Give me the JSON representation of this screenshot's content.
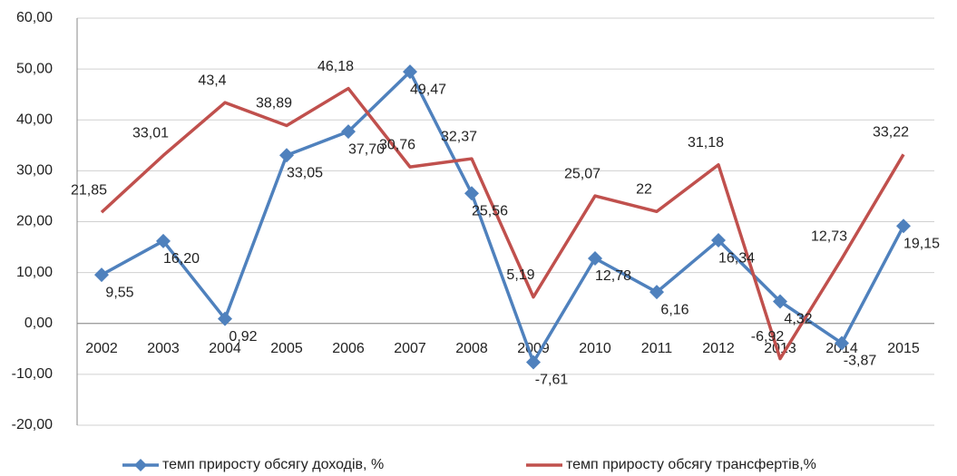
{
  "chart_data": {
    "type": "line",
    "categories": [
      "2002",
      "2003",
      "2004",
      "2005",
      "2006",
      "2007",
      "2008",
      "2009",
      "2010",
      "2011",
      "2012",
      "2013",
      "2014",
      "2015"
    ],
    "series": [
      {
        "name": "темп приросту обсягу доходів, %",
        "color": "#4f81bd",
        "marker": "diamond",
        "values": [
          9.55,
          16.2,
          0.92,
          33.05,
          37.7,
          49.47,
          25.56,
          -7.61,
          12.78,
          6.16,
          16.34,
          4.32,
          -3.87,
          19.15
        ],
        "value_labels": [
          "9,55",
          "16,20",
          "0,92",
          "33,05",
          "37,70",
          "49,47",
          "25,56",
          "-7,61",
          "12,78",
          "6,16",
          "16,34",
          "4,32",
          "-3,87",
          "19,15"
        ]
      },
      {
        "name": "темп приросту обсягу трансфертів,%",
        "color": "#c0504d",
        "values": [
          21.85,
          33.01,
          43.4,
          38.89,
          46.18,
          30.76,
          32.37,
          5.19,
          25.07,
          22,
          31.18,
          -6.92,
          12.73,
          33.22
        ],
        "value_labels": [
          "21,85",
          "33,01",
          "43,4",
          "38,89",
          "46,18",
          "30,76",
          "32,37",
          "5,19",
          "25,07",
          "22",
          "31,18",
          "-6,92",
          "12,73",
          "33,22"
        ]
      }
    ],
    "ylim": [
      -20,
      60
    ],
    "yticks": [
      {
        "value": -20,
        "label": "-20,00"
      },
      {
        "value": -10,
        "label": "-10,00"
      },
      {
        "value": 0,
        "label": "0,00"
      },
      {
        "value": 10,
        "label": "10,00"
      },
      {
        "value": 20,
        "label": "20,00"
      },
      {
        "value": 30,
        "label": "30,00"
      },
      {
        "value": 40,
        "label": "40,00"
      },
      {
        "value": 50,
        "label": "50,00"
      },
      {
        "value": 60,
        "label": "60,00"
      }
    ],
    "grid": true,
    "legend": "bottom"
  }
}
